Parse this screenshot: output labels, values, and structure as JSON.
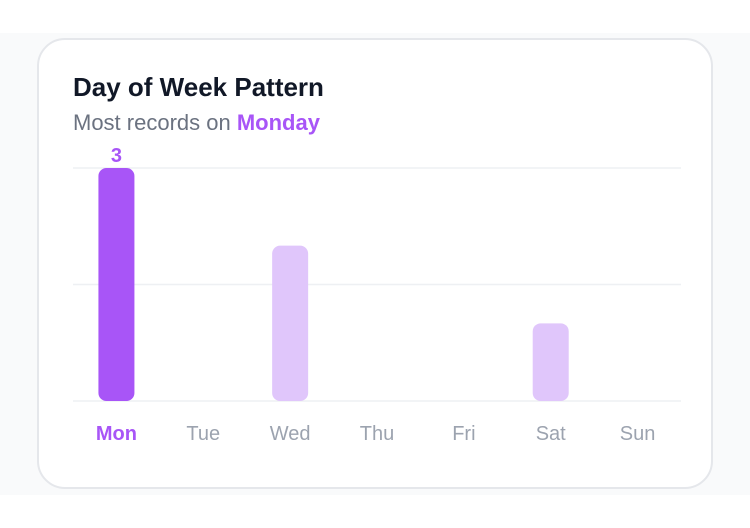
{
  "card": {
    "title": "Day of Week Pattern",
    "subtitle_prefix": "Most records on ",
    "subtitle_highlight": "Monday"
  },
  "colors": {
    "peak_bar": "#a855f7",
    "other_bar": "#e0c6fb",
    "peak_label": "#a855f7",
    "other_label": "#9ca3af",
    "grid": "#eef0f3",
    "value_label": "#a855f7"
  },
  "chart_data": {
    "type": "bar",
    "title": "Day of Week Pattern",
    "categories": [
      "Mon",
      "Tue",
      "Wed",
      "Thu",
      "Fri",
      "Sat",
      "Sun"
    ],
    "values": [
      3,
      0,
      2,
      0,
      0,
      1,
      0
    ],
    "highlight_index": 0,
    "data_labels": [
      "3",
      "",
      "",
      "",
      "",
      "",
      ""
    ],
    "ylim": [
      0,
      3
    ],
    "grid": true,
    "legend": "none"
  }
}
